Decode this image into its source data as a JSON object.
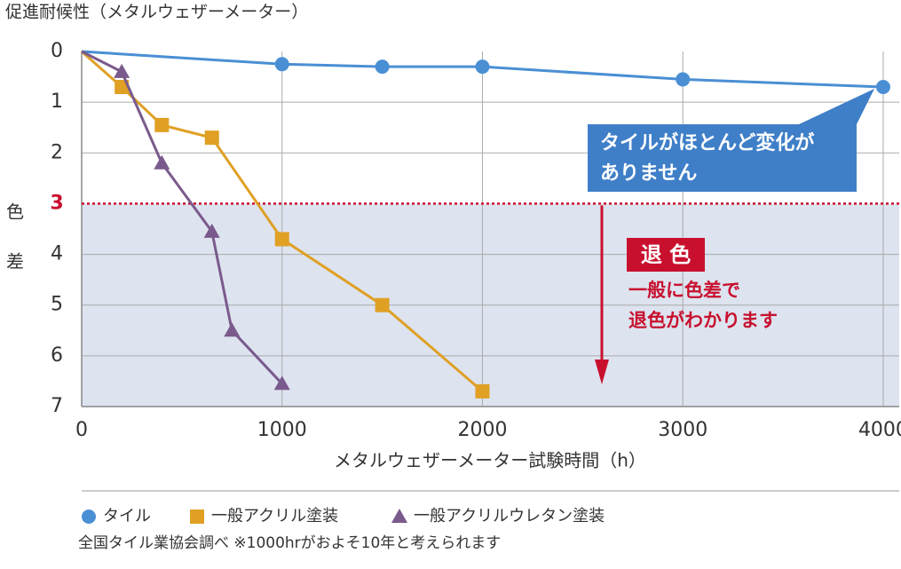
{
  "chart_data": {
    "type": "line",
    "title": "促進耐候性（メタルウェザーメーター）",
    "xlabel": "メタルウェザーメーター試験時間（h）",
    "ylabel": "色差",
    "xlim": [
      0,
      4080
    ],
    "ylim": [
      0,
      7
    ],
    "xticks": [
      0,
      1000,
      2000,
      3000,
      4000
    ],
    "yticks": [
      0,
      1,
      2,
      3,
      4,
      5,
      6,
      7
    ],
    "y_inverted": true,
    "grid": true,
    "threshold": 3,
    "shade_color": "#dde3ef",
    "threshold_color": "#c8102e",
    "series": [
      {
        "name": "タイル",
        "color": "#4a8fd4",
        "marker": "circle",
        "x": [
          0,
          1000,
          1500,
          2000,
          3000,
          4000
        ],
        "values": [
          0,
          0.25,
          0.3,
          0.3,
          0.55,
          0.7
        ]
      },
      {
        "name": "一般アクリル塗装",
        "color": "#dfa024",
        "marker": "square",
        "x": [
          0,
          200,
          400,
          650,
          1000,
          1500,
          2000
        ],
        "values": [
          0,
          0.7,
          1.45,
          1.7,
          3.7,
          5.0,
          6.7
        ]
      },
      {
        "name": "一般アクリルウレタン塗装",
        "color": "#7a5a8c",
        "marker": "triangle",
        "x": [
          0,
          200,
          400,
          650,
          750,
          1000
        ],
        "values": [
          0,
          0.4,
          2.2,
          3.55,
          5.5,
          6.55
        ]
      }
    ],
    "tile_note": [
      "タイルがほとんど変化が",
      "ありません"
    ],
    "fade_label": "退 色",
    "fade_note": [
      "一般に色差で",
      "退色がわかります"
    ],
    "note": "全国タイル業協会調べ ※1000hrがおよそ10年と考えられます"
  }
}
